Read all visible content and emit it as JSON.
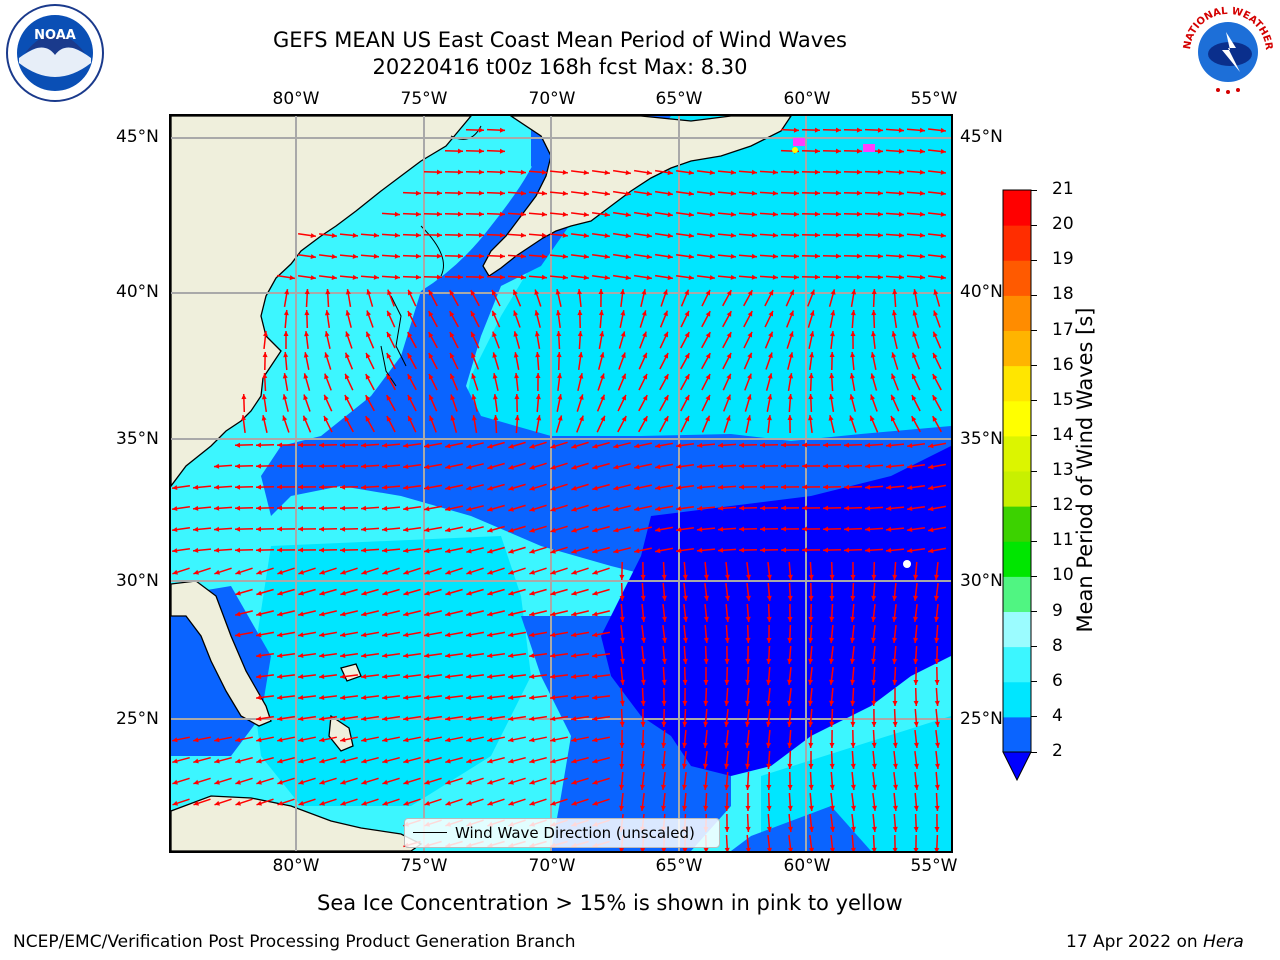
{
  "header": {
    "title_line1": "GEFS MEAN US East Coast Mean Period of Wind Waves",
    "title_line2": "20220416 t00z 168h fcst   Max: 8.30"
  },
  "logos": {
    "left": {
      "text": "NOAA",
      "icon": "noaa-logo-icon"
    },
    "right": {
      "text": "NATIONAL WEATHER SERVICE",
      "icon": "nws-logo-icon"
    }
  },
  "map": {
    "lon_ticks": [
      "80°W",
      "75°W",
      "70°W",
      "65°W",
      "60°W",
      "55°W"
    ],
    "lat_ticks": [
      "45°N",
      "40°N",
      "35°N",
      "30°N",
      "25°N"
    ],
    "land_color": "#efefdc",
    "legend_label": "Wind Wave Direction (unscaled)",
    "arrow_color": "#ff0000"
  },
  "colorbar": {
    "label": "Mean Period of Wind Waves [s]",
    "ticks": [
      "2",
      "4",
      "6",
      "8",
      "9",
      "10",
      "11",
      "12",
      "13",
      "14",
      "15",
      "16",
      "17",
      "18",
      "19",
      "20",
      "21"
    ],
    "colors": [
      "#0a64ff",
      "#00e6ff",
      "#3cf6ff",
      "#9bfcff",
      "#50f582",
      "#00e600",
      "#3cd200",
      "#c8f000",
      "#dcf500",
      "#ffff00",
      "#ffe600",
      "#ffb400",
      "#ff8c00",
      "#ff5a00",
      "#ff2d00",
      "#ff0000"
    ],
    "under_color": "#0000ff"
  },
  "subtitle": "Sea Ice Concentration > 15% is shown in pink to yellow",
  "footer": {
    "left": "NCEP/EMC/Verification Post Processing Product Generation Branch",
    "right_prefix": "17 Apr 2022 on ",
    "right_host": "Hera"
  }
}
